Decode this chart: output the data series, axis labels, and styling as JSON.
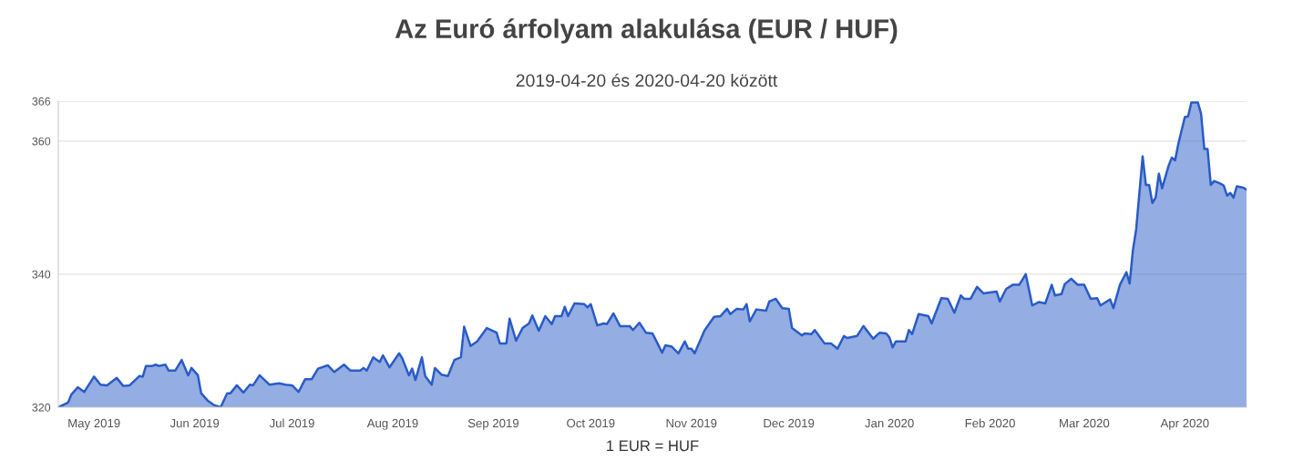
{
  "chart_data": {
    "type": "area",
    "title": "Az Euró árfolyam alakulása (EUR / HUF)",
    "subtitle": "2019-04-20 és 2020-04-20 között",
    "xlabel": "1 EUR = HUF",
    "x": [
      "2019-04-20",
      "2019-04-23",
      "2019-04-24",
      "2019-04-26",
      "2019-04-28",
      "2019-05-01",
      "2019-05-03",
      "2019-05-05",
      "2019-05-08",
      "2019-05-10",
      "2019-05-12",
      "2019-05-15",
      "2019-05-16",
      "2019-05-17",
      "2019-05-19",
      "2019-05-20",
      "2019-05-21",
      "2019-05-23",
      "2019-05-24",
      "2019-05-26",
      "2019-05-28",
      "2019-05-30",
      "2019-05-31",
      "2019-06-02",
      "2019-06-03",
      "2019-06-05",
      "2019-06-07",
      "2019-06-09",
      "2019-06-11",
      "2019-06-12",
      "2019-06-14",
      "2019-06-16",
      "2019-06-18",
      "2019-06-19",
      "2019-06-21",
      "2019-06-24",
      "2019-06-27",
      "2019-06-29",
      "2019-07-01",
      "2019-07-03",
      "2019-07-05",
      "2019-07-07",
      "2019-07-09",
      "2019-07-12",
      "2019-07-14",
      "2019-07-17",
      "2019-07-19",
      "2019-07-22",
      "2019-07-23",
      "2019-07-24",
      "2019-07-26",
      "2019-07-28",
      "2019-07-29",
      "2019-07-31",
      "2019-08-03",
      "2019-08-04",
      "2019-08-06",
      "2019-08-07",
      "2019-08-08",
      "2019-08-10",
      "2019-08-11",
      "2019-08-13",
      "2019-08-14",
      "2019-08-16",
      "2019-08-18",
      "2019-08-20",
      "2019-08-22",
      "2019-08-23",
      "2019-08-25",
      "2019-08-27",
      "2019-08-30",
      "2019-09-02",
      "2019-09-03",
      "2019-09-05",
      "2019-09-06",
      "2019-09-08",
      "2019-09-10",
      "2019-09-12",
      "2019-09-13",
      "2019-09-15",
      "2019-09-17",
      "2019-09-19",
      "2019-09-20",
      "2019-09-22",
      "2019-09-23",
      "2019-09-24",
      "2019-09-26",
      "2019-09-29",
      "2019-09-30",
      "2019-10-01",
      "2019-10-03",
      "2019-10-05",
      "2019-10-06",
      "2019-10-08",
      "2019-10-10",
      "2019-10-13",
      "2019-10-14",
      "2019-10-16",
      "2019-10-18",
      "2019-10-20",
      "2019-10-23",
      "2019-10-24",
      "2019-10-26",
      "2019-10-28",
      "2019-10-30",
      "2019-10-31",
      "2019-11-01",
      "2019-11-02",
      "2019-11-05",
      "2019-11-08",
      "2019-11-10",
      "2019-11-12",
      "2019-11-13",
      "2019-11-15",
      "2019-11-17",
      "2019-11-18",
      "2019-11-19",
      "2019-11-21",
      "2019-11-24",
      "2019-11-25",
      "2019-11-27",
      "2019-11-29",
      "2019-12-01",
      "2019-12-02",
      "2019-12-05",
      "2019-12-06",
      "2019-12-08",
      "2019-12-09",
      "2019-12-12",
      "2019-12-14",
      "2019-12-16",
      "2019-12-18",
      "2019-12-19",
      "2019-12-22",
      "2019-12-24",
      "2019-12-27",
      "2019-12-29",
      "2019-12-31",
      "2020-01-01",
      "2020-01-02",
      "2020-01-03",
      "2020-01-06",
      "2020-01-07",
      "2020-01-08",
      "2020-01-10",
      "2020-01-13",
      "2020-01-14",
      "2020-01-17",
      "2020-01-19",
      "2020-01-21",
      "2020-01-23",
      "2020-01-24",
      "2020-01-26",
      "2020-01-28",
      "2020-01-30",
      "2020-02-03",
      "2020-02-04",
      "2020-02-06",
      "2020-02-08",
      "2020-02-10",
      "2020-02-12",
      "2020-02-14",
      "2020-02-16",
      "2020-02-18",
      "2020-02-20",
      "2020-02-21",
      "2020-02-23",
      "2020-02-24",
      "2020-02-26",
      "2020-02-28",
      "2020-03-01",
      "2020-03-03",
      "2020-03-05",
      "2020-03-06",
      "2020-03-09",
      "2020-03-10",
      "2020-03-12",
      "2020-03-14",
      "2020-03-15",
      "2020-03-16",
      "2020-03-17",
      "2020-03-19",
      "2020-03-20",
      "2020-03-21",
      "2020-03-22",
      "2020-03-23",
      "2020-03-24",
      "2020-03-25",
      "2020-03-27",
      "2020-03-28",
      "2020-03-29",
      "2020-03-30",
      "2020-04-01",
      "2020-04-02",
      "2020-04-03",
      "2020-04-05",
      "2020-04-06",
      "2020-04-07",
      "2020-04-08",
      "2020-04-09",
      "2020-04-10",
      "2020-04-12",
      "2020-04-13",
      "2020-04-14",
      "2020-04-15",
      "2020-04-16",
      "2020-04-17",
      "2020-04-19",
      "2020-04-20"
    ],
    "series": [
      {
        "color": "#2a5bc6",
        "values": [
          320.0,
          320.7,
          321.9,
          323.0,
          322.3,
          324.6,
          323.4,
          323.3,
          324.4,
          323.2,
          323.3,
          324.7,
          324.6,
          326.2,
          326.2,
          326.4,
          326.2,
          326.4,
          325.5,
          325.5,
          327.1,
          324.8,
          325.9,
          324.8,
          322.1,
          321.0,
          320.3,
          320.0,
          322.1,
          322.1,
          323.3,
          322.2,
          323.4,
          323.3,
          324.8,
          323.4,
          323.6,
          323.4,
          323.3,
          322.3,
          324.2,
          324.2,
          325.8,
          326.3,
          325.3,
          326.4,
          325.5,
          325.5,
          325.9,
          325.5,
          327.5,
          326.8,
          327.8,
          326.0,
          328.1,
          327.3,
          324.8,
          325.8,
          324.1,
          327.5,
          324.7,
          323.4,
          325.9,
          324.9,
          324.7,
          327.1,
          327.5,
          332.1,
          329.2,
          329.9,
          331.9,
          331.2,
          329.6,
          329.6,
          333.3,
          330.0,
          331.9,
          332.6,
          333.8,
          331.5,
          333.7,
          332.5,
          333.7,
          333.7,
          335.1,
          333.7,
          335.6,
          335.5,
          335.0,
          335.5,
          332.3,
          332.6,
          332.5,
          334.1,
          332.2,
          332.2,
          331.6,
          332.7,
          331.2,
          331.1,
          328.2,
          329.3,
          329.1,
          328.1,
          329.9,
          328.8,
          328.8,
          328.1,
          331.5,
          333.6,
          333.7,
          334.8,
          334.0,
          334.8,
          334.7,
          335.5,
          332.9,
          334.7,
          334.5,
          335.9,
          336.3,
          334.9,
          334.8,
          331.9,
          330.8,
          331.1,
          331.0,
          331.6,
          329.6,
          329.6,
          328.8,
          330.7,
          330.4,
          330.7,
          332.2,
          330.3,
          331.2,
          331.1,
          330.5,
          329.0,
          329.9,
          329.9,
          331.6,
          331.0,
          334.0,
          333.7,
          332.6,
          336.4,
          336.3,
          334.2,
          336.8,
          336.3,
          336.3,
          338.1,
          337.1,
          337.4,
          335.9,
          337.8,
          338.4,
          338.4,
          340.0,
          335.3,
          335.8,
          335.6,
          338.4,
          336.8,
          337.0,
          338.5,
          339.3,
          338.4,
          338.4,
          336.3,
          336.4,
          335.3,
          336.2,
          334.9,
          338.4,
          340.3,
          338.6,
          343.6,
          346.7,
          357.7,
          353.4,
          353.4,
          350.7,
          351.5,
          355.1,
          352.9,
          356.3,
          357.5,
          357.1,
          359.6,
          363.6,
          363.7,
          365.8,
          365.8,
          364.1,
          358.8,
          358.8,
          353.4,
          354.0,
          353.6,
          353.3,
          351.8,
          352.2,
          351.5,
          353.2,
          353.0,
          352.7
        ]
      }
    ],
    "xlim": [
      "2019-04-20",
      "2020-04-20"
    ],
    "xticks": [
      {
        "value": "2019-05-01",
        "label": "May 2019"
      },
      {
        "value": "2019-06-01",
        "label": "Jun 2019"
      },
      {
        "value": "2019-07-01",
        "label": "Jul 2019"
      },
      {
        "value": "2019-08-01",
        "label": "Aug 2019"
      },
      {
        "value": "2019-09-01",
        "label": "Sep 2019"
      },
      {
        "value": "2019-10-01",
        "label": "Oct 2019"
      },
      {
        "value": "2019-11-01",
        "label": "Nov 2019"
      },
      {
        "value": "2019-12-01",
        "label": "Dec 2019"
      },
      {
        "value": "2020-01-01",
        "label": "Jan 2020"
      },
      {
        "value": "2020-02-01",
        "label": "Feb 2020"
      },
      {
        "value": "2020-03-01",
        "label": "Mar 2020"
      },
      {
        "value": "2020-04-01",
        "label": "Apr 2020"
      }
    ],
    "ylim": [
      320,
      366
    ],
    "yticks": [
      320,
      340,
      360,
      366
    ],
    "grid": "y",
    "legend": false
  }
}
